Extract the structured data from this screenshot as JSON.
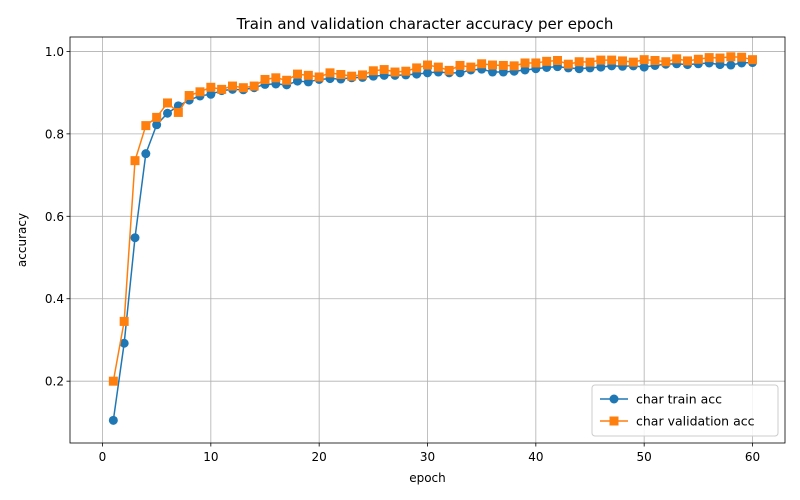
{
  "chart_data": {
    "type": "line",
    "title": "Train and validation character accuracy per epoch",
    "xlabel": "epoch",
    "ylabel": "accuracy",
    "xlim": [
      -3,
      63
    ],
    "ylim": [
      0.05,
      1.035
    ],
    "xticks": [
      0,
      10,
      20,
      30,
      40,
      50,
      60
    ],
    "yticks": [
      0.2,
      0.4,
      0.6,
      0.8,
      1.0
    ],
    "xtick_labels": [
      "0",
      "10",
      "20",
      "30",
      "40",
      "50",
      "60"
    ],
    "ytick_labels": [
      "0.2",
      "0.4",
      "0.6",
      "0.8",
      "1.0"
    ],
    "grid": true,
    "legend_position": "lower-right",
    "x": [
      1,
      2,
      3,
      4,
      5,
      6,
      7,
      8,
      9,
      10,
      11,
      12,
      13,
      14,
      15,
      16,
      17,
      18,
      19,
      20,
      21,
      22,
      23,
      24,
      25,
      26,
      27,
      28,
      29,
      30,
      31,
      32,
      33,
      34,
      35,
      36,
      37,
      38,
      39,
      40,
      41,
      42,
      43,
      44,
      45,
      46,
      47,
      48,
      49,
      50,
      51,
      52,
      53,
      54,
      55,
      56,
      57,
      58,
      59,
      60
    ],
    "series": [
      {
        "name": "char train acc",
        "color": "#1f77b4",
        "marker": "circle",
        "values": [
          0.105,
          0.292,
          0.548,
          0.752,
          0.822,
          0.85,
          0.868,
          0.882,
          0.892,
          0.896,
          0.905,
          0.908,
          0.907,
          0.912,
          0.92,
          0.921,
          0.919,
          0.928,
          0.926,
          0.932,
          0.934,
          0.933,
          0.936,
          0.937,
          0.94,
          0.942,
          0.942,
          0.943,
          0.945,
          0.948,
          0.95,
          0.948,
          0.948,
          0.955,
          0.957,
          0.95,
          0.95,
          0.952,
          0.955,
          0.958,
          0.961,
          0.963,
          0.96,
          0.958,
          0.96,
          0.962,
          0.965,
          0.964,
          0.965,
          0.962,
          0.966,
          0.969,
          0.97,
          0.968,
          0.97,
          0.972,
          0.968,
          0.967,
          0.972,
          0.973
        ]
      },
      {
        "name": "char validation acc",
        "color": "#ff7f0e",
        "marker": "square",
        "values": [
          0.2,
          0.345,
          0.735,
          0.82,
          0.84,
          0.875,
          0.852,
          0.893,
          0.902,
          0.913,
          0.908,
          0.916,
          0.912,
          0.916,
          0.932,
          0.936,
          0.93,
          0.945,
          0.942,
          0.938,
          0.948,
          0.944,
          0.94,
          0.943,
          0.953,
          0.956,
          0.95,
          0.952,
          0.96,
          0.967,
          0.962,
          0.954,
          0.966,
          0.962,
          0.97,
          0.967,
          0.966,
          0.965,
          0.972,
          0.972,
          0.976,
          0.978,
          0.969,
          0.975,
          0.974,
          0.979,
          0.979,
          0.977,
          0.974,
          0.98,
          0.978,
          0.975,
          0.982,
          0.977,
          0.981,
          0.985,
          0.984,
          0.987,
          0.986,
          0.98
        ]
      }
    ]
  }
}
